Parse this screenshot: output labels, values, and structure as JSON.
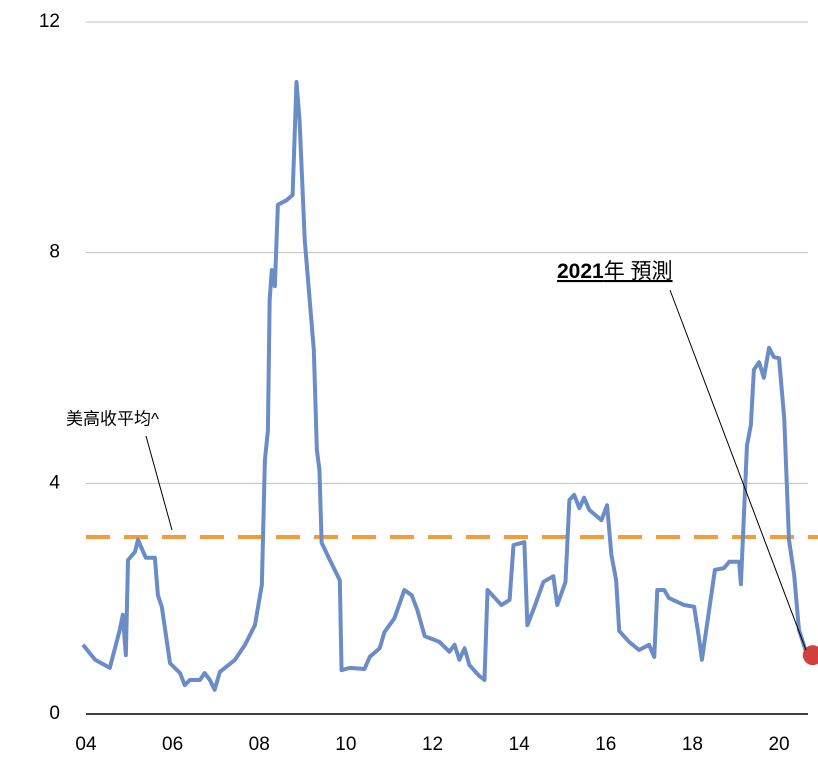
{
  "chart_data": {
    "type": "line",
    "xlim": [
      2004,
      2020.9
    ],
    "xticks": [
      {
        "value": 2004,
        "label": "04"
      },
      {
        "value": 2006,
        "label": "06"
      },
      {
        "value": 2008,
        "label": "08"
      },
      {
        "value": 2010,
        "label": "10"
      },
      {
        "value": 2012,
        "label": "12"
      },
      {
        "value": 2014,
        "label": "14"
      },
      {
        "value": 2016,
        "label": "16"
      },
      {
        "value": 2018,
        "label": "18"
      },
      {
        "value": 2020,
        "label": "20"
      }
    ],
    "ylim": [
      0,
      12
    ],
    "yticks": [
      0,
      4,
      8,
      12
    ],
    "grid": true,
    "x": [
      2003.93,
      2004.21,
      2004.55,
      2004.78,
      2004.85,
      2004.92,
      2004.97,
      2005.13,
      2005.2,
      2005.38,
      2005.59,
      2005.66,
      2005.75,
      2005.94,
      2006.17,
      2006.28,
      2006.4,
      2006.63,
      2006.74,
      2006.86,
      2006.97,
      2007.09,
      2007.44,
      2007.67,
      2007.9,
      2008.06,
      2008.13,
      2008.2,
      2008.24,
      2008.29,
      2008.36,
      2008.43,
      2008.63,
      2008.77,
      2008.86,
      2008.93,
      2009.05,
      2009.26,
      2009.33,
      2009.39,
      2009.44,
      2009.63,
      2009.86,
      2009.9,
      2010.09,
      2010.43,
      2010.55,
      2010.78,
      2010.89,
      2011.12,
      2011.35,
      2011.52,
      2011.65,
      2011.82,
      2012.16,
      2012.39,
      2012.51,
      2012.62,
      2012.74,
      2012.85,
      2013.08,
      2013.2,
      2013.27,
      2013.48,
      2013.59,
      2013.78,
      2013.87,
      2014.12,
      2014.19,
      2014.37,
      2014.56,
      2014.79,
      2014.88,
      2015.07,
      2015.16,
      2015.27,
      2015.39,
      2015.5,
      2015.62,
      2015.9,
      2016.03,
      2016.13,
      2016.24,
      2016.31,
      2016.54,
      2016.77,
      2017.0,
      2017.12,
      2017.19,
      2017.35,
      2017.46,
      2017.81,
      2018.04,
      2018.16,
      2018.22,
      2018.32,
      2018.43,
      2018.52,
      2018.73,
      2018.85,
      2019.08,
      2019.12,
      2019.26,
      2019.35,
      2019.42,
      2019.54,
      2019.65,
      2019.77,
      2019.88,
      2020.0,
      2020.12,
      2020.23,
      2020.35,
      2020.46,
      2020.65
    ],
    "series": [
      {
        "color": "#6a8cc7",
        "values": [
          1.2,
          0.94,
          0.8,
          1.46,
          1.72,
          1.02,
          2.67,
          2.81,
          3.02,
          2.71,
          2.71,
          2.06,
          1.86,
          0.88,
          0.71,
          0.5,
          0.59,
          0.59,
          0.71,
          0.59,
          0.42,
          0.73,
          0.94,
          1.2,
          1.54,
          2.24,
          4.4,
          4.92,
          7.18,
          7.7,
          7.42,
          8.83,
          8.91,
          9.0,
          10.96,
          10.3,
          8.22,
          6.31,
          4.58,
          4.23,
          2.97,
          2.67,
          2.32,
          0.76,
          0.8,
          0.78,
          0.99,
          1.14,
          1.42,
          1.66,
          2.15,
          2.06,
          1.8,
          1.35,
          1.25,
          1.08,
          1.2,
          0.94,
          1.14,
          0.85,
          0.66,
          0.59,
          2.15,
          1.98,
          1.89,
          1.98,
          2.93,
          2.98,
          1.54,
          1.89,
          2.29,
          2.39,
          1.89,
          2.29,
          3.71,
          3.8,
          3.57,
          3.75,
          3.54,
          3.36,
          3.62,
          2.76,
          2.32,
          1.44,
          1.25,
          1.11,
          1.2,
          0.99,
          2.15,
          2.15,
          2.01,
          1.89,
          1.86,
          1.28,
          0.94,
          1.46,
          2.03,
          2.5,
          2.53,
          2.64,
          2.64,
          2.25,
          4.66,
          5.01,
          5.97,
          6.1,
          5.83,
          6.35,
          6.19,
          6.17,
          5.13,
          3.02,
          2.41,
          1.46,
          1.02
        ]
      }
    ],
    "average": {
      "value": 3.07,
      "color": "#f79a3b",
      "label": "美高收平均^"
    },
    "forecast": {
      "x": 2020.78,
      "value": 1.02,
      "color": "#d34040",
      "label": [
        "2021",
        "年 預測"
      ]
    }
  }
}
